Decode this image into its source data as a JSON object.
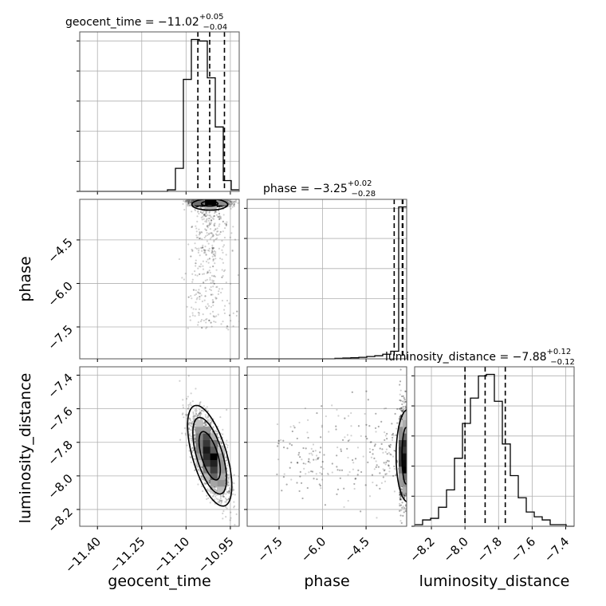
{
  "figure": {
    "titles": {
      "geocent_time": {
        "main": "geocent_time = −11.02",
        "sup": "+0.05",
        "sub": "−0.04"
      },
      "phase": {
        "main": "phase = −3.25",
        "sup": "+0.02",
        "sub": "−0.28"
      },
      "luminosity_distance": {
        "main": "luminosity_distance = −7.88",
        "sup": "+0.12",
        "sub": "−0.12"
      }
    },
    "axis_labels": {
      "geocent_time": "geocent_time",
      "phase": "phase",
      "luminosity_distance": "luminosity_distance"
    },
    "ticks": {
      "geocent_time": [
        "−11.40",
        "−11.25",
        "−11.10",
        "−10.95"
      ],
      "phase": [
        "−7.5",
        "−6.0",
        "−4.5"
      ],
      "luminosity_distance_x": [
        "−8.2",
        "−8.0",
        "−7.8",
        "−7.6",
        "−7.4"
      ],
      "luminosity_distance_y": [
        "−7.4",
        "−7.6",
        "−7.8",
        "−8.0",
        "−8.2"
      ]
    }
  },
  "chart_data": {
    "type": "corner",
    "parameters": [
      "geocent_time",
      "phase",
      "luminosity_distance"
    ],
    "ranges": {
      "geocent_time": [
        -11.46,
        -10.92
      ],
      "phase": [
        -8.6,
        -3.1
      ],
      "luminosity_distance": [
        -8.3,
        -7.35
      ]
    },
    "grid": true,
    "quantiles": {
      "geocent_time": [
        -11.06,
        -11.02,
        -10.97
      ],
      "phase": [
        -3.53,
        -3.25,
        -3.23
      ],
      "luminosity_distance": [
        -8.0,
        -7.88,
        -7.76
      ]
    },
    "histograms": {
      "geocent_time": {
        "edges": [
          -11.46,
          -11.433,
          -11.406,
          -11.379,
          -11.352,
          -11.325,
          -11.298,
          -11.271,
          -11.244,
          -11.217,
          -11.19,
          -11.163,
          -11.136,
          -11.109,
          -11.082,
          -11.055,
          -11.028,
          -11.001,
          -10.974,
          -10.947,
          -10.92
        ],
        "counts": [
          0,
          0,
          0,
          0,
          0,
          0,
          0,
          0,
          0,
          0,
          0,
          1,
          15,
          73,
          99,
          98,
          74,
          42,
          7,
          1
        ]
      },
      "phase": {
        "edges": [
          -8.6,
          -8.325,
          -8.05,
          -7.775,
          -7.5,
          -7.225,
          -6.95,
          -6.675,
          -6.4,
          -6.125,
          -5.85,
          -5.575,
          -5.3,
          -5.025,
          -4.75,
          -4.475,
          -4.2,
          -3.925,
          -3.65,
          -3.375,
          -3.1
        ],
        "counts": [
          0,
          0,
          0,
          0,
          0,
          0,
          0,
          0,
          0,
          0,
          0,
          0.3,
          0.5,
          0.7,
          1,
          1.5,
          2,
          3,
          5,
          100
        ]
      },
      "luminosity_distance": {
        "edges": [
          -8.3,
          -8.2525,
          -8.205,
          -8.1575,
          -8.11,
          -8.0625,
          -8.015,
          -7.9675,
          -7.92,
          -7.8725,
          -7.825,
          -7.7775,
          -7.73,
          -7.6825,
          -7.635,
          -7.5875,
          -7.54,
          -7.4925,
          -7.445,
          -7.3975,
          -7.35
        ],
        "counts": [
          1,
          4,
          5,
          12,
          23,
          43,
          65,
          81,
          95,
          96,
          79,
          52,
          32,
          18,
          9,
          6,
          4,
          1,
          1,
          0
        ]
      }
    },
    "scatter_samples": {
      "phase_vs_geocent_time": {
        "x_mean": -11.02,
        "x_sd": 0.03,
        "y_mode": -3.35,
        "y_tail": -7.2
      },
      "luminosity_distance_vs_geocent_time": {
        "x_mean": -11.02,
        "x_sd": 0.03,
        "y_mean": -7.88,
        "y_sd": 0.12,
        "correlation": -0.6
      },
      "luminosity_distance_vs_phase": {
        "x_mode": -3.3,
        "x_tail": -7.6,
        "y_mean": -7.88,
        "y_sd": 0.12
      }
    }
  }
}
